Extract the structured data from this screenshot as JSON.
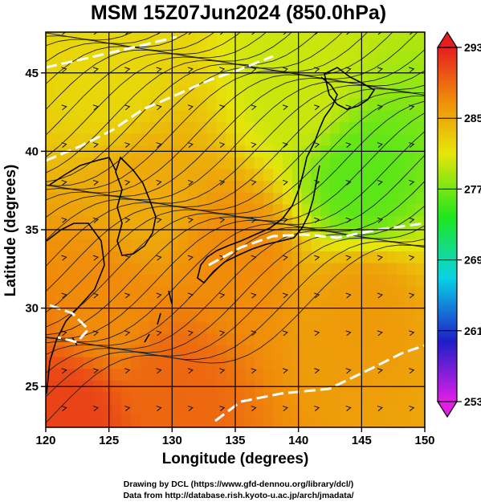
{
  "chart_data": {
    "type": "heatmap",
    "title": "MSM 15Z07Jun2024 (850.0hPa)",
    "xlabel": "Longitude (degrees)",
    "ylabel": "Latitude  (degrees)",
    "xlim": [
      120,
      150
    ],
    "ylim": [
      22.4,
      47.6
    ],
    "x_ticks": [
      120,
      125,
      130,
      135,
      140,
      145,
      150
    ],
    "y_ticks": [
      25,
      30,
      35,
      40,
      45
    ],
    "grid": true,
    "overlay": [
      "streamlines",
      "coastlines",
      "white dashed contours"
    ],
    "colorbar": {
      "ticks": [
        253,
        261,
        269,
        277,
        285,
        293
      ],
      "min": 253,
      "max": 293,
      "colors": [
        "#e21ee6",
        "#1e1ec8",
        "#0ad2e6",
        "#1ee61e",
        "#e6e60a",
        "#f08c0a",
        "#e61e1e"
      ]
    },
    "field_samples": [
      {
        "lon": 125,
        "lat": 45,
        "value": 282
      },
      {
        "lon": 140,
        "lat": 44,
        "value": 280
      },
      {
        "lon": 145,
        "lat": 38,
        "value": 276
      },
      {
        "lon": 128,
        "lat": 37,
        "value": 285
      },
      {
        "lon": 135,
        "lat": 33,
        "value": 287
      },
      {
        "lon": 125,
        "lat": 30,
        "value": 287
      },
      {
        "lon": 145,
        "lat": 30,
        "value": 286
      },
      {
        "lon": 130,
        "lat": 25,
        "value": 289
      },
      {
        "lon": 122,
        "lat": 23,
        "value": 291
      }
    ]
  },
  "credits": {
    "line1": "Drawing by DCL (https://www.gfd-dennou.org/library/dcl/)",
    "line2": "Data from http://database.rish.kyoto-u.ac.jp/arch/jmadata/"
  }
}
